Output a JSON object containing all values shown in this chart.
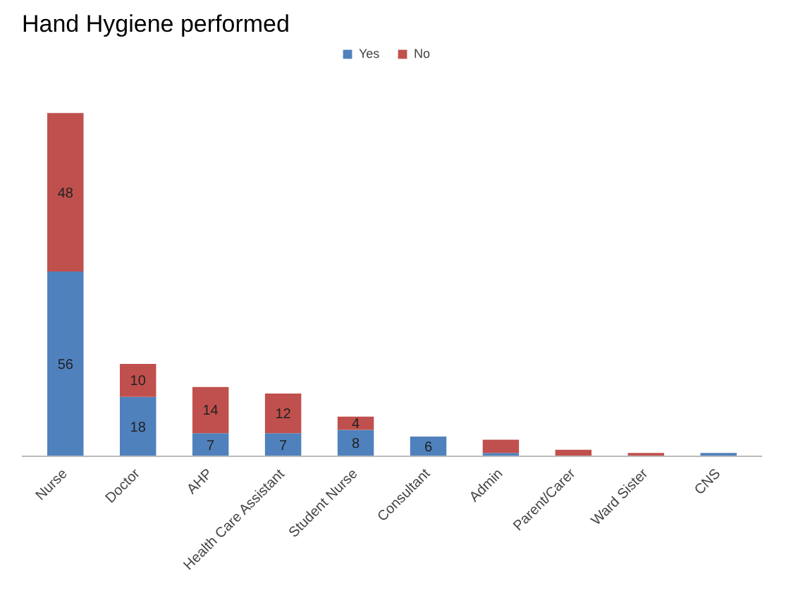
{
  "chart_data": {
    "type": "bar",
    "title": "Hand Hygiene performed",
    "stacked": true,
    "legend": "top",
    "grid": false,
    "categories": [
      "Nurse",
      "Doctor",
      "AHP",
      "Health Care Assistant",
      "Student Nurse",
      "Consultant",
      "Admin",
      "Parent/Carer",
      "Ward Sister",
      "CNS"
    ],
    "series": [
      {
        "name": "Yes",
        "color": "#4f81bd",
        "values": [
          56,
          18,
          7,
          7,
          8,
          6,
          1,
          0,
          0,
          1
        ],
        "value_labels": [
          "56",
          "18",
          "7",
          "7",
          "8",
          "6",
          null,
          null,
          null,
          null
        ]
      },
      {
        "name": "No",
        "color": "#c0504d",
        "values": [
          48,
          10,
          14,
          12,
          4,
          0,
          4,
          2,
          1,
          0
        ],
        "value_labels": [
          "48",
          "10",
          "14",
          "12",
          "4",
          null,
          null,
          null,
          null,
          null
        ]
      }
    ]
  }
}
